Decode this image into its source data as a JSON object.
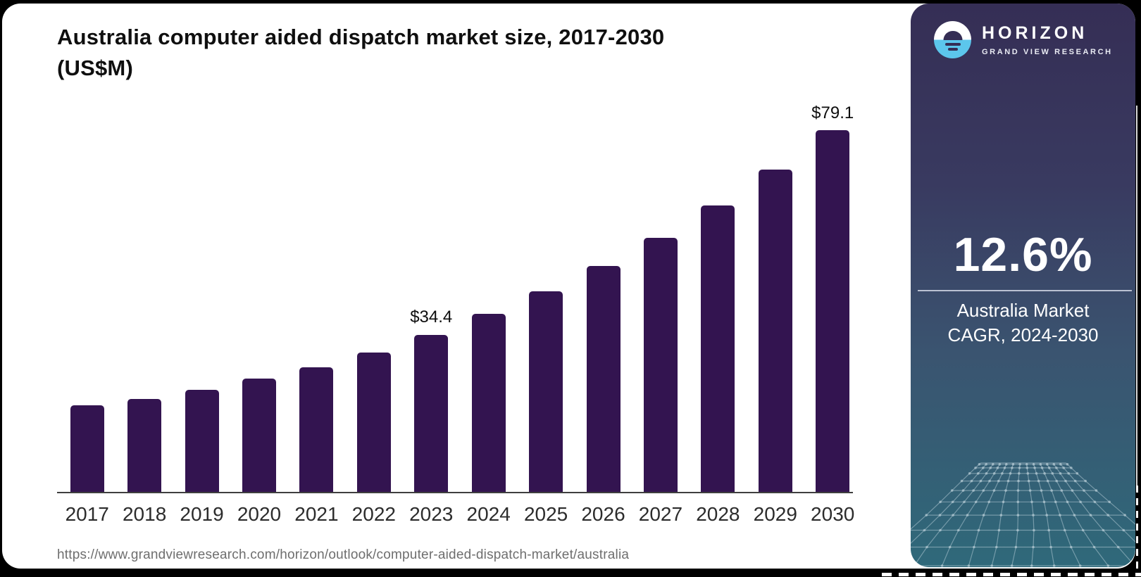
{
  "title": {
    "line1": "Australia computer aided dispatch market size, 2017-2030",
    "line2": "(US$M)"
  },
  "source_url": "https://www.grandviewresearch.com/horizon/outlook/computer-aided-dispatch-market/australia",
  "sidebar": {
    "logo": {
      "icon": "horizon-sunset-icon",
      "brand": "HORIZON",
      "subbrand": "GRAND VIEW RESEARCH"
    },
    "cagr_value": "12.6%",
    "caption_line1": "Australia Market",
    "caption_line2": "CAGR, 2024-2030"
  },
  "chart_data": {
    "type": "bar",
    "title": "Australia computer aided dispatch market size, 2017-2030 (US$M)",
    "unit": "US$M",
    "categories": [
      "2017",
      "2018",
      "2019",
      "2020",
      "2021",
      "2022",
      "2023",
      "2024",
      "2025",
      "2026",
      "2027",
      "2028",
      "2029",
      "2030"
    ],
    "values": [
      18.9,
      20.3,
      22.3,
      24.8,
      27.2,
      30.5,
      34.4,
      39.0,
      43.9,
      49.4,
      55.6,
      62.6,
      70.5,
      79.1
    ],
    "labeled_points": [
      {
        "index": 6,
        "label": "$34.4"
      },
      {
        "index": 13,
        "label": "$79.1"
      }
    ],
    "bar_color": "#331450",
    "ylim": [
      0,
      82
    ],
    "grid": false,
    "legend": null,
    "y_axis_visible": false,
    "x_axis_labels_visible": true
  },
  "colors": {
    "bar": "#331450",
    "panel_gradient_top": "#352e55",
    "panel_gradient_bottom": "#2f697a",
    "logo_blue": "#5cc6ec",
    "card_background": "#ffffff",
    "canvas_background": "#000000"
  }
}
